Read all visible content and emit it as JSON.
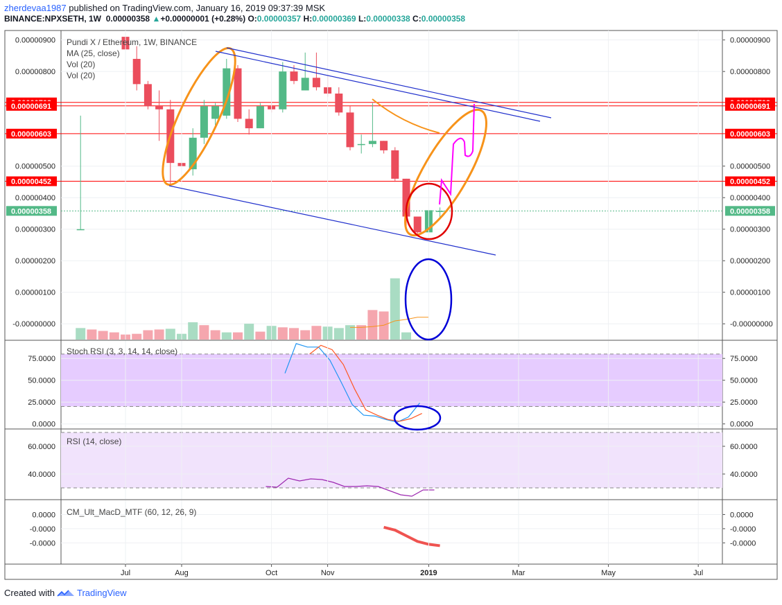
{
  "header": {
    "author": "zherdevaa1987",
    "published": "published on TradingView.com, January 16, 2019 09:37:39 MSK",
    "symbol": "BINANCE:NPXSETH, 1W",
    "last": "0.00000358",
    "change": "+0.00000001 (+0.28%)",
    "o_label": "O:",
    "o_value": "0.00000357",
    "h_label": "H:",
    "h_value": "0.00000369",
    "l_label": "L:",
    "l_value": "0.00000338",
    "c_label": "C:",
    "c_value": "0.00000358"
  },
  "legend": {
    "main": "Pundi X / Ethereum, 1W, BINANCE",
    "ma": "MA (25, close)",
    "vol1": "Vol (20)",
    "vol2": "Vol (20)",
    "stoch": "Stoch RSI (3, 3, 14, 14, close)",
    "rsi": "RSI (14, close)",
    "macd": "CM_Ult_MacD_MTF (60, 12, 26, 9)"
  },
  "footer": {
    "created_with": "Created with",
    "brand": "TradingView"
  },
  "chart_data": [
    {
      "type": "candlestick",
      "title": "Pundi X / Ethereum, 1W, BINANCE",
      "ylim": [
        -5e-07,
        9.3e-06
      ],
      "y_ticks": [
        {
          "v": 9e-06,
          "label": "0.00000900"
        },
        {
          "v": 8e-06,
          "label": "0.00000800"
        },
        {
          "v": 5e-06,
          "label": "0.00000500"
        },
        {
          "v": 4e-06,
          "label": "0.00000400"
        },
        {
          "v": 3e-06,
          "label": "0.00000300"
        },
        {
          "v": 2e-06,
          "label": "0.00000200"
        },
        {
          "v": 1e-06,
          "label": "0.00000100"
        },
        {
          "v": 0,
          "label": "-0.00000000"
        }
      ],
      "x_ticks": [
        "Jul",
        "Aug",
        "Oct",
        "Nov",
        "2019",
        "Mar",
        "May",
        "Jul"
      ],
      "x_tick_weeks": [
        2,
        7,
        15,
        20,
        29,
        37,
        45,
        53
      ],
      "price_lines": [
        {
          "value": 7.02e-06,
          "label": "0.00000702",
          "color": "#ff0000"
        },
        {
          "value": 6.91e-06,
          "label": "0.00000691",
          "color": "#ff0000"
        },
        {
          "value": 6.03e-06,
          "label": "0.00000603",
          "color": "#ff0000"
        },
        {
          "value": 4.52e-06,
          "label": "0.00000452",
          "color": "#ff0000"
        }
      ],
      "last_price": {
        "value": 3.58e-06,
        "label": "0.00000358",
        "color": "#53b987"
      },
      "candles": [
        {
          "w": -2,
          "o": 3e-06,
          "h": 6.6e-06,
          "l": 3e-06,
          "c": 3e-06
        },
        {
          "w": 2,
          "o": 9.1e-06,
          "h": 9.3e-06,
          "l": 7.3e-06,
          "c": 8.7e-06
        },
        {
          "w": 3,
          "o": 8.4e-06,
          "h": 8.8e-06,
          "l": 7.4e-06,
          "c": 7.6e-06
        },
        {
          "w": 4,
          "o": 7.6e-06,
          "h": 7.7e-06,
          "l": 6.8e-06,
          "c": 6.9e-06
        },
        {
          "w": 5,
          "o": 6.9e-06,
          "h": 7.4e-06,
          "l": 5.8e-06,
          "c": 6.8e-06
        },
        {
          "w": 6,
          "o": 6.8e-06,
          "h": 7.1e-06,
          "l": 4.4e-06,
          "c": 5.1e-06
        },
        {
          "w": 7,
          "o": 5.1e-06,
          "h": 5.5e-06,
          "l": 4.6e-06,
          "c": 5e-06
        },
        {
          "w": 8,
          "o": 4.9e-06,
          "h": 6.2e-06,
          "l": 4.7e-06,
          "c": 5.9e-06
        },
        {
          "w": 9,
          "o": 5.9e-06,
          "h": 7.1e-06,
          "l": 5.7e-06,
          "c": 6.9e-06
        },
        {
          "w": 10,
          "o": 6.5e-06,
          "h": 7e-06,
          "l": 6.3e-06,
          "c": 6.9e-06
        },
        {
          "w": 11,
          "o": 6.6e-06,
          "h": 8.4e-06,
          "l": 6.5e-06,
          "c": 8.1e-06
        },
        {
          "w": 12,
          "o": 8.1e-06,
          "h": 8.2e-06,
          "l": 6.4e-06,
          "c": 6.5e-06
        },
        {
          "w": 13,
          "o": 6.5e-06,
          "h": 6.8e-06,
          "l": 6e-06,
          "c": 6.2e-06
        },
        {
          "w": 14,
          "o": 6.2e-06,
          "h": 7e-06,
          "l": 6.2e-06,
          "c": 6.9e-06
        },
        {
          "w": 15,
          "o": 6.9e-06,
          "h": 7e-06,
          "l": 6.7e-06,
          "c": 6.8e-06
        },
        {
          "w": 16,
          "o": 6.8e-06,
          "h": 8.3e-06,
          "l": 6.7e-06,
          "c": 8e-06
        },
        {
          "w": 17,
          "o": 8e-06,
          "h": 8.2e-06,
          "l": 7.6e-06,
          "c": 7.7e-06
        },
        {
          "w": 18,
          "o": 7.4e-06,
          "h": 8.6e-06,
          "l": 7.4e-06,
          "c": 7.8e-06
        },
        {
          "w": 19,
          "o": 7.8e-06,
          "h": 8.6e-06,
          "l": 7.4e-06,
          "c": 7.5e-06
        },
        {
          "w": 20,
          "o": 7.5e-06,
          "h": 7.9e-06,
          "l": 7.2e-06,
          "c": 7.3e-06
        },
        {
          "w": 21,
          "o": 7.3e-06,
          "h": 7.5e-06,
          "l": 6.6e-06,
          "c": 6.7e-06
        },
        {
          "w": 22,
          "o": 6.7e-06,
          "h": 6.9e-06,
          "l": 5.5e-06,
          "c": 5.6e-06
        },
        {
          "w": 23,
          "o": 5.7e-06,
          "h": 6e-06,
          "l": 5.4e-06,
          "c": 5.7e-06
        },
        {
          "w": 24,
          "o": 5.7e-06,
          "h": 7e-06,
          "l": 5.6e-06,
          "c": 5.8e-06
        },
        {
          "w": 25,
          "o": 5.8e-06,
          "h": 5.8e-06,
          "l": 5.4e-06,
          "c": 5.5e-06
        },
        {
          "w": 26,
          "o": 5.5e-06,
          "h": 5.6e-06,
          "l": 4.5e-06,
          "c": 4.6e-06
        },
        {
          "w": 27,
          "o": 4.6e-06,
          "h": 4.6e-06,
          "l": 3e-06,
          "c": 3.4e-06
        },
        {
          "w": 28,
          "o": 3.4e-06,
          "h": 3.4e-06,
          "l": 2.8e-06,
          "c": 2.9e-06
        },
        {
          "w": 29,
          "o": 2.9e-06,
          "h": 3.6e-06,
          "l": 2.9e-06,
          "c": 3.6e-06
        },
        {
          "w": 30,
          "o": 3.57e-06,
          "h": 3.69e-06,
          "l": 3.38e-06,
          "c": 3.58e-06
        }
      ],
      "volume": [
        {
          "w": -2,
          "v": 0.32,
          "up": true
        },
        {
          "w": -1,
          "v": 0.28,
          "up": false
        },
        {
          "w": 0,
          "v": 0.24,
          "up": false
        },
        {
          "w": 1,
          "v": 0.2,
          "up": false
        },
        {
          "w": 2,
          "v": 0.14,
          "up": false
        },
        {
          "w": 3,
          "v": 0.16,
          "up": false
        },
        {
          "w": 4,
          "v": 0.26,
          "up": false
        },
        {
          "w": 5,
          "v": 0.28,
          "up": false
        },
        {
          "w": 6,
          "v": 0.3,
          "up": true
        },
        {
          "w": 7,
          "v": 0.16,
          "up": true
        },
        {
          "w": 8,
          "v": 0.48,
          "up": true
        },
        {
          "w": 9,
          "v": 0.4,
          "up": false
        },
        {
          "w": 10,
          "v": 0.26,
          "up": false
        },
        {
          "w": 11,
          "v": 0.2,
          "up": true
        },
        {
          "w": 12,
          "v": 0.2,
          "up": false
        },
        {
          "w": 13,
          "v": 0.44,
          "up": true
        },
        {
          "w": 14,
          "v": 0.22,
          "up": false
        },
        {
          "w": 15,
          "v": 0.38,
          "up": true
        },
        {
          "w": 16,
          "v": 0.34,
          "up": false
        },
        {
          "w": 17,
          "v": 0.32,
          "up": false
        },
        {
          "w": 18,
          "v": 0.26,
          "up": false
        },
        {
          "w": 19,
          "v": 0.38,
          "up": false
        },
        {
          "w": 20,
          "v": 0.36,
          "up": true
        },
        {
          "w": 21,
          "v": 0.32,
          "up": true
        },
        {
          "w": 22,
          "v": 0.4,
          "up": true
        },
        {
          "w": 23,
          "v": 0.4,
          "up": false
        },
        {
          "w": 24,
          "v": 0.82,
          "up": false
        },
        {
          "w": 25,
          "v": 0.78,
          "up": false
        },
        {
          "w": 26,
          "v": 1.7,
          "up": true
        },
        {
          "w": 27,
          "v": 0.2,
          "up": true
        }
      ]
    },
    {
      "type": "line",
      "title": "Stoch RSI (3, 3, 14, 14, close)",
      "ylim": [
        -5,
        95
      ],
      "y_ticks": [
        {
          "v": 75,
          "label": "75.0000"
        },
        {
          "v": 50,
          "label": "50.0000"
        },
        {
          "v": 25,
          "label": "25.0000"
        },
        {
          "v": 0,
          "label": "0.0000"
        }
      ],
      "band": [
        20,
        80
      ],
      "series": [
        {
          "color": "#2196f3",
          "points": [
            [
              16.2,
              58
            ],
            [
              17.2,
              92
            ],
            [
              18.2,
              88
            ],
            [
              19.2,
              88
            ],
            [
              20.2,
              73
            ],
            [
              21.2,
              48
            ],
            [
              22.2,
              22
            ],
            [
              23.2,
              10
            ],
            [
              24.2,
              9
            ],
            [
              25.2,
              5
            ],
            [
              26.2,
              2
            ],
            [
              27.2,
              8
            ],
            [
              28.2,
              24
            ]
          ]
        },
        {
          "color": "#ff5722",
          "points": [
            [
              18.4,
              80
            ],
            [
              19.4,
              90
            ],
            [
              20.4,
              85
            ],
            [
              21.4,
              68
            ],
            [
              22.4,
              40
            ],
            [
              23.4,
              16
            ],
            [
              24.4,
              10
            ],
            [
              25.4,
              5
            ],
            [
              26.4,
              3
            ],
            [
              27.4,
              6
            ],
            [
              28.4,
              12
            ]
          ]
        }
      ]
    },
    {
      "type": "line",
      "title": "RSI (14, close)",
      "ylim": [
        22,
        72
      ],
      "y_ticks": [
        {
          "v": 60,
          "label": "60.0000"
        },
        {
          "v": 40,
          "label": "40.0000"
        }
      ],
      "band": [
        30,
        70
      ],
      "series": [
        {
          "color": "#9c27b0",
          "points": [
            [
              14.5,
              31
            ],
            [
              15.5,
              30.5
            ],
            [
              16.5,
              37
            ],
            [
              17.5,
              35
            ],
            [
              18.5,
              36.5
            ],
            [
              19.5,
              36
            ],
            [
              20.5,
              34
            ],
            [
              21.5,
              31
            ],
            [
              22.5,
              31
            ],
            [
              23.5,
              31.5
            ],
            [
              24.5,
              31
            ],
            [
              25.5,
              28
            ],
            [
              26.5,
              25
            ],
            [
              27.5,
              24
            ],
            [
              28.5,
              28.5
            ],
            [
              29.5,
              28.5
            ]
          ]
        }
      ]
    },
    {
      "type": "line",
      "title": "CM_Ult_MacD_MTF (60, 12, 26, 9)",
      "ylim": [
        -0.25,
        0.2
      ],
      "y_ticks": [
        {
          "v": 0.1,
          "label": "0.0000"
        },
        {
          "v": 0,
          "label": "-0.0000"
        },
        {
          "v": -0.1,
          "label": "-0.0000"
        }
      ],
      "series": [
        {
          "color": "#ef5350",
          "points": [
            [
              25.0,
              0.01
            ],
            [
              26.0,
              -0.01
            ],
            [
              27.0,
              -0.05
            ],
            [
              28.0,
              -0.09
            ],
            [
              29.0,
              -0.11
            ],
            [
              30.0,
              -0.12
            ]
          ]
        }
      ]
    }
  ],
  "annotations": [
    {
      "kind": "ellipse",
      "color": "#f7931a",
      "cx": [
        8.5
      ],
      "cy": 6.3e-06,
      "label": ""
    }
  ]
}
